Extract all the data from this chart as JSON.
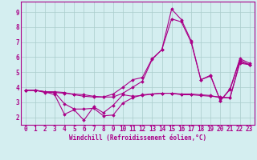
{
  "title": "",
  "xlabel": "Windchill (Refroidissement éolien,°C)",
  "ylabel": "",
  "bg_color": "#d4eef0",
  "line_color": "#aa0088",
  "grid_color": "#aacccc",
  "spine_color": "#aa0088",
  "xlim": [
    -0.5,
    23.5
  ],
  "ylim": [
    1.5,
    9.7
  ],
  "yticks": [
    2,
    3,
    4,
    5,
    6,
    7,
    8,
    9
  ],
  "curves": [
    [
      3.8,
      3.8,
      3.7,
      3.7,
      3.65,
      3.5,
      3.4,
      3.35,
      3.35,
      3.55,
      4.0,
      4.5,
      4.65,
      5.9,
      6.5,
      9.2,
      8.5,
      7.1,
      4.5,
      4.8,
      3.1,
      3.9,
      5.9,
      5.6
    ],
    [
      3.8,
      3.8,
      3.7,
      3.5,
      2.2,
      2.5,
      1.8,
      2.7,
      2.3,
      2.8,
      3.5,
      3.4,
      3.45,
      3.55,
      3.6,
      3.6,
      3.55,
      3.55,
      3.5,
      3.45,
      3.3,
      3.3,
      5.7,
      5.5
    ],
    [
      3.8,
      3.8,
      3.65,
      3.65,
      2.9,
      2.55,
      2.55,
      2.6,
      2.1,
      2.15,
      2.95,
      3.3,
      3.5,
      3.55,
      3.6,
      3.6,
      3.5,
      3.5,
      3.45,
      3.4,
      3.35,
      3.3,
      5.6,
      5.5
    ],
    [
      3.8,
      3.8,
      3.7,
      3.65,
      3.6,
      3.55,
      3.5,
      3.4,
      3.35,
      3.35,
      3.6,
      4.0,
      4.4,
      5.85,
      6.5,
      8.55,
      8.35,
      7.0,
      4.5,
      4.75,
      3.1,
      3.85,
      5.8,
      5.5
    ]
  ],
  "marker": "D",
  "markersize": 1.8,
  "linewidth": 0.8,
  "xlabel_fontsize": 5.5,
  "tick_fontsize": 5.5
}
